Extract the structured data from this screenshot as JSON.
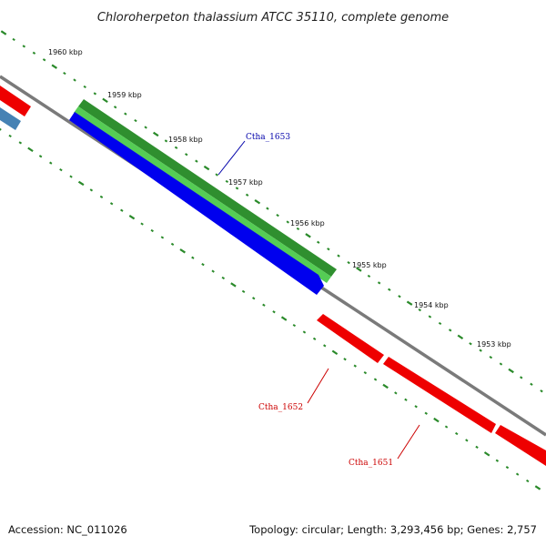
{
  "title": "Chloroherpeton thalassium ATCC 35110, complete genome",
  "footer": {
    "accession": "Accession: NC_011026",
    "summary": "Topology: circular; Length: 3,293,456 bp; Genes: 2,757"
  },
  "scale": [
    {
      "label": "1960 kbp"
    },
    {
      "label": "1959 kbp"
    },
    {
      "label": "1958 kbp"
    },
    {
      "label": "1957 kbp"
    },
    {
      "label": "1956 kbp"
    },
    {
      "label": "1955 kbp"
    },
    {
      "label": "1954 kbp"
    },
    {
      "label": "1953 kbp"
    }
  ],
  "genes": [
    {
      "label": "Ctha_1653",
      "color": "#0000aa"
    },
    {
      "label": "Ctha_1652",
      "color": "#cc0000"
    },
    {
      "label": "Ctha_1651",
      "color": "#cc0000"
    }
  ],
  "colors": {
    "backbone": "#7a7a7a",
    "tick": "#2a8a2a",
    "green_dark": "#2f8f2f",
    "green_light": "#55cc55",
    "blue": "#0000ee",
    "red": "#ee0000",
    "steel": "#4682b4"
  }
}
